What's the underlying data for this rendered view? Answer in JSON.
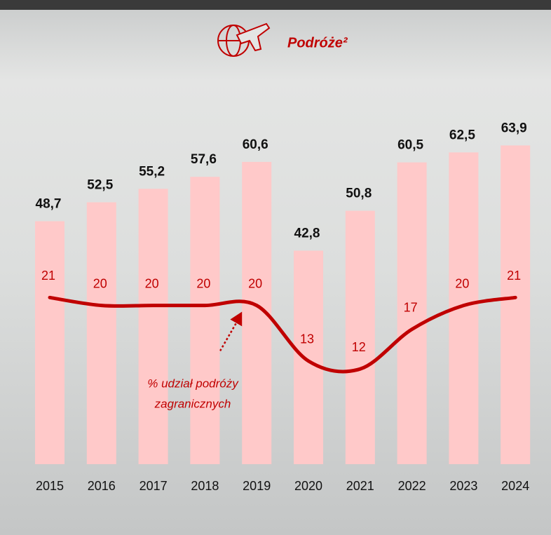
{
  "chart_data": {
    "type": "bar",
    "title": "Podróże²",
    "categories": [
      "2015",
      "2016",
      "2017",
      "2018",
      "2019",
      "2020",
      "2021",
      "2022",
      "2023",
      "2024"
    ],
    "series": [
      {
        "color": "#ffc9c9",
        "values": [
          48.7,
          52.5,
          55.2,
          57.6,
          60.6,
          42.8,
          50.8,
          60.5,
          62.5,
          63.9
        ],
        "value_labels": [
          "48,7",
          "52,5",
          "55,2",
          "57,6",
          "60,6",
          "42,8",
          "50,8",
          "60,5",
          "62,5",
          "63,9"
        ]
      },
      {
        "type": "line",
        "axis": "y2",
        "color": "#c00000",
        "values": [
          21,
          20,
          20,
          20,
          20,
          13,
          12,
          17,
          20,
          21
        ]
      }
    ],
    "annotation": [
      "% udział podróży",
      "zagranicznych"
    ],
    "ylim": [
      0,
      70
    ],
    "y2lim": [
      0,
      44
    ]
  }
}
